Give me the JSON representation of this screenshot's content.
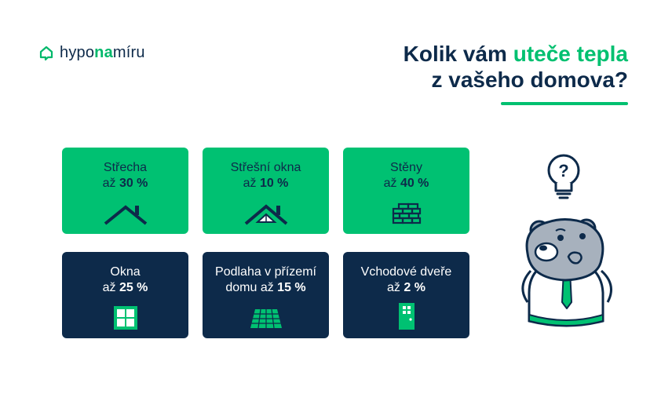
{
  "brand": {
    "logo_prefix": "hypo",
    "logo_accent": "na",
    "logo_suffix": "míru",
    "icon": "house-chat-icon",
    "accent_color": "#00c172",
    "dark_color": "#0d2a4a"
  },
  "headline": {
    "line1_start": "Kolik vám ",
    "line1_accent": "uteče tepla",
    "line2": "z vašeho domova?"
  },
  "cards": [
    {
      "title": "Střecha",
      "prefix": "až ",
      "value": "30 %",
      "icon": "roof-icon"
    },
    {
      "title": "Střešní okna",
      "prefix": "až ",
      "value": "10 %",
      "icon": "roof-window-icon"
    },
    {
      "title": "Stěny",
      "prefix": "až ",
      "value": "40 %",
      "icon": "brick-wall-icon"
    },
    {
      "title": "Okna",
      "prefix": "až ",
      "value": "25 %",
      "icon": "window-icon"
    },
    {
      "title": "Podlaha v přízemí",
      "prefix": "domu až ",
      "value": "15 %",
      "icon": "floor-tiles-icon"
    },
    {
      "title": "Vchodové dveře",
      "prefix": "až ",
      "value": "2 %",
      "icon": "door-icon"
    }
  ],
  "mascot": {
    "bulb_symbol": "?",
    "icon": "thinking-bear-mascot-icon"
  }
}
